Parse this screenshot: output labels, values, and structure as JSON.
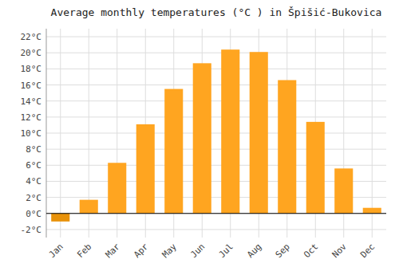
{
  "chart_data": {
    "type": "bar",
    "title": "Average monthly temperatures (°C ) in Špišić-Bukovica",
    "categories": [
      "Jan",
      "Feb",
      "Mar",
      "Apr",
      "May",
      "Jun",
      "Jul",
      "Aug",
      "Sep",
      "Oct",
      "Nov",
      "Dec"
    ],
    "values": [
      -1.0,
      1.7,
      6.3,
      11.1,
      15.5,
      18.7,
      20.4,
      20.1,
      16.6,
      11.4,
      5.6,
      0.7
    ],
    "colors": [
      "#E8920A",
      "#FFA520",
      "#FFA520",
      "#FFA520",
      "#FFA520",
      "#FFA520",
      "#FFA520",
      "#FFA520",
      "#FFA520",
      "#FFA520",
      "#FFA520",
      "#FFA520"
    ],
    "ylim": [
      -3,
      23
    ],
    "yticks": [
      {
        "value": -2,
        "label": "-2°C"
      },
      {
        "value": 0,
        "label": "0°C"
      },
      {
        "value": 2,
        "label": "2°C"
      },
      {
        "value": 4,
        "label": "4°C"
      },
      {
        "value": 6,
        "label": "6°C"
      },
      {
        "value": 8,
        "label": "8°C"
      },
      {
        "value": 10,
        "label": "10°C"
      },
      {
        "value": 12,
        "label": "12°C"
      },
      {
        "value": 14,
        "label": "14°C"
      },
      {
        "value": 16,
        "label": "16°C"
      },
      {
        "value": 18,
        "label": "18°C"
      },
      {
        "value": 20,
        "label": "20°C"
      },
      {
        "value": 22,
        "label": "22°C"
      }
    ],
    "grid": true
  }
}
